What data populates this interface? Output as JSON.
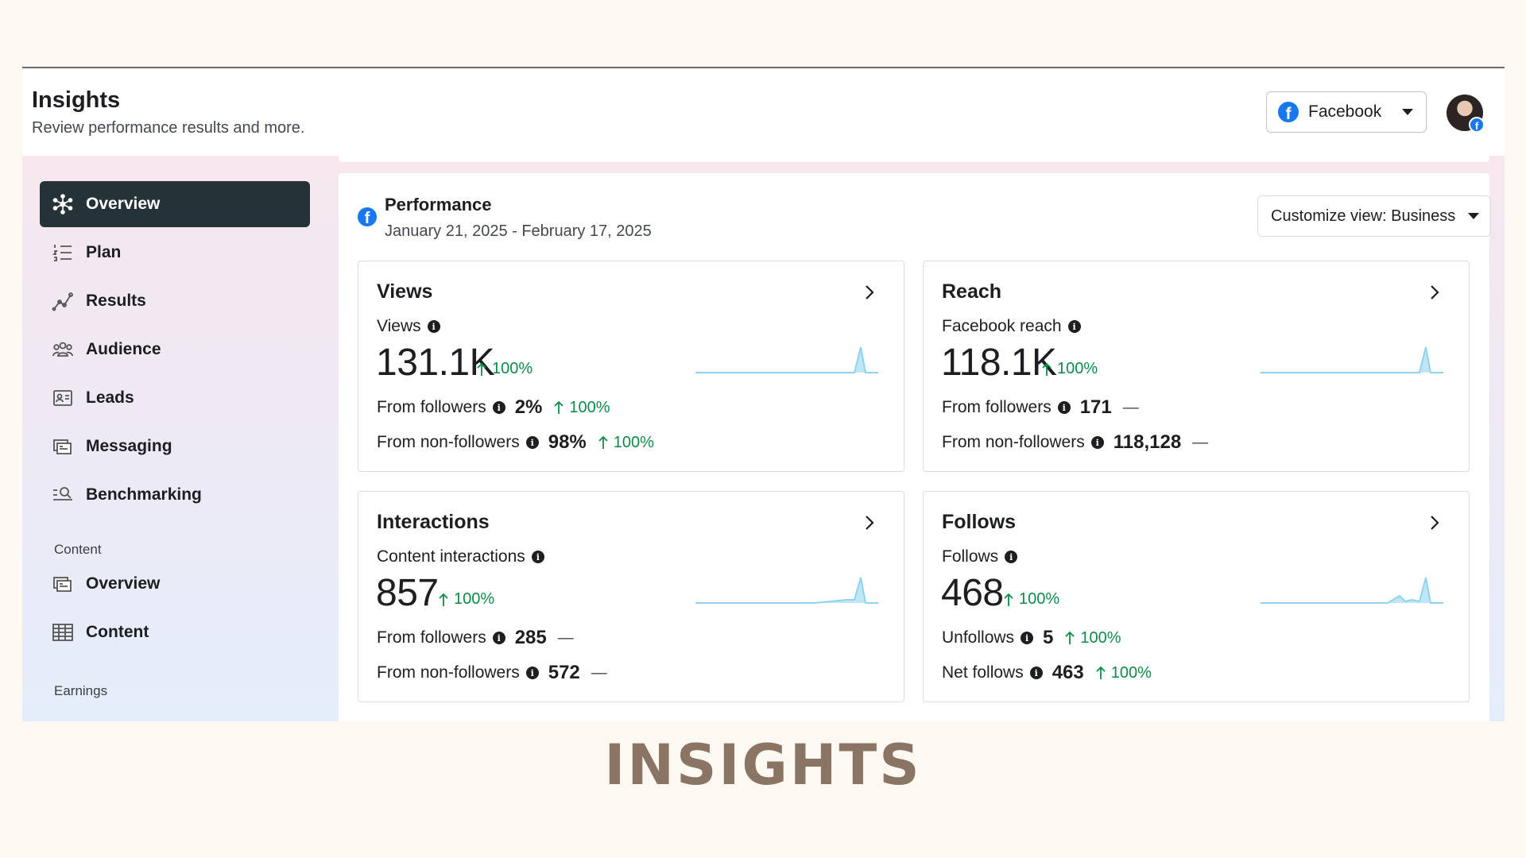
{
  "header": {
    "title": "Insights",
    "subtitle": "Review performance results and more.",
    "platform_select": "Facebook"
  },
  "sidebar": {
    "items": [
      {
        "label": "Overview",
        "icon": "overview-icon",
        "active": true
      },
      {
        "label": "Plan",
        "icon": "plan-icon"
      },
      {
        "label": "Results",
        "icon": "results-icon"
      },
      {
        "label": "Audience",
        "icon": "audience-icon"
      },
      {
        "label": "Leads",
        "icon": "leads-icon"
      },
      {
        "label": "Messaging",
        "icon": "messaging-icon"
      },
      {
        "label": "Benchmarking",
        "icon": "benchmarking-icon"
      }
    ],
    "content_section_label": "Content",
    "content_items": [
      {
        "label": "Overview",
        "icon": "content-overview-icon"
      },
      {
        "label": "Content",
        "icon": "content-table-icon"
      }
    ],
    "earnings_section_label": "Earnings"
  },
  "performance": {
    "title": "Performance",
    "date_range": "January 21, 2025 - February 17, 2025",
    "customize_view": "Customize view: Business"
  },
  "cards": {
    "views": {
      "title": "Views",
      "metric_label": "Views",
      "value": "131.1K",
      "change": "100%",
      "rows": [
        {
          "label": "From followers",
          "value": "2%",
          "change": "100%"
        },
        {
          "label": "From non-followers",
          "value": "98%",
          "change": "100%"
        }
      ]
    },
    "reach": {
      "title": "Reach",
      "metric_label": "Facebook reach",
      "value": "118.1K",
      "change": "100%",
      "rows": [
        {
          "label": "From followers",
          "value": "171",
          "change": "—"
        },
        {
          "label": "From non-followers",
          "value": "118,128",
          "change": "—"
        }
      ]
    },
    "interactions": {
      "title": "Interactions",
      "metric_label": "Content interactions",
      "value": "857",
      "change": "100%",
      "rows": [
        {
          "label": "From followers",
          "value": "285",
          "change": "—"
        },
        {
          "label": "From non-followers",
          "value": "572",
          "change": "—"
        }
      ]
    },
    "follows": {
      "title": "Follows",
      "metric_label": "Follows",
      "value": "468",
      "change": "100%",
      "rows": [
        {
          "label": "Unfollows",
          "value": "5",
          "change": "100%"
        },
        {
          "label": "Net follows",
          "value": "463",
          "change": "100%"
        }
      ]
    }
  },
  "caption": "INSIGHTS",
  "colors": {
    "accent": "#1877f2",
    "active_nav": "#253238",
    "positive": "#0f8a49",
    "sparkline": "#8fd3ee",
    "caption": "#8a7463"
  }
}
